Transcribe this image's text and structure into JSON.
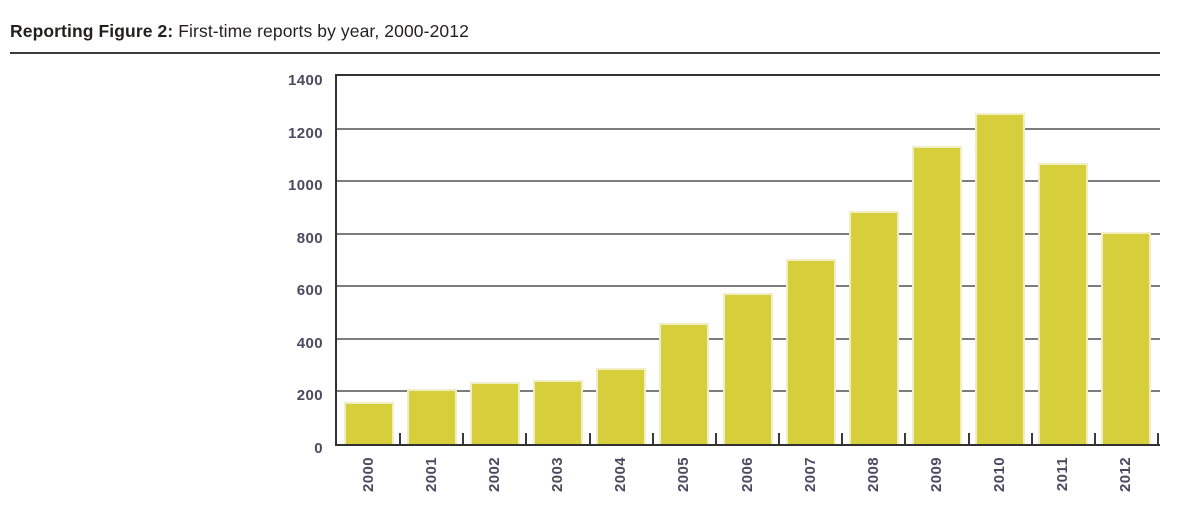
{
  "figure": {
    "title_label": "Reporting Figure 2:",
    "title_text": "First-time reports by year, 2000-2012"
  },
  "chart_data": {
    "type": "bar",
    "title": "Reporting Figure 2: First-time reports by year, 2000-2012",
    "categories": [
      "2000",
      "2001",
      "2002",
      "2003",
      "2004",
      "2005",
      "2006",
      "2007",
      "2008",
      "2009",
      "2010",
      "2011",
      "2012"
    ],
    "values": [
      160,
      210,
      235,
      245,
      290,
      460,
      575,
      705,
      885,
      1135,
      1260,
      1070,
      805
    ],
    "xlabel": "",
    "ylabel": "",
    "ylim": [
      0,
      1400
    ],
    "ytick_step": 200,
    "ytick_labels": [
      "0",
      "200",
      "400",
      "600",
      "800",
      "1000",
      "1200",
      "1400"
    ],
    "grid": true,
    "legend": false,
    "x_label_rotation_deg": -90,
    "colors": {
      "bar_fill": "#d6cf3b",
      "bar_edge": "#f0eec4",
      "gridline": "#7c7c7c",
      "axis_line": "#323232",
      "tick_label": "#4c4960",
      "title_text": "#241f1f",
      "divider": "#3c3c3c"
    }
  }
}
